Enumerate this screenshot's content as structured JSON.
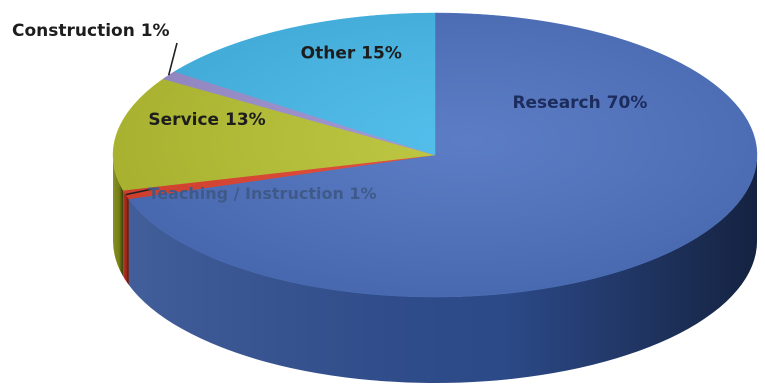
{
  "chart_data": {
    "type": "pie",
    "style": "3d",
    "categories": [
      "Research",
      "Teaching / Instruction",
      "Service",
      "Construction",
      "Other"
    ],
    "values": [
      70,
      1,
      13,
      1,
      15
    ],
    "labels": [
      "Research 70%",
      "Teaching / Instruction 1%",
      "Service 13%",
      "Construction 1%",
      "Other 15%"
    ],
    "colors": [
      "#4a6fbf",
      "#e2402c",
      "#b7c22f",
      "#9b8fd0",
      "#42b8ea"
    ],
    "side_colors": [
      "#2e4d8f",
      "#a62818",
      "#7e8716",
      "#6a60a0",
      "#2389b3"
    ],
    "label_colors": [
      "#1c2c5c",
      "#3f5a8a",
      "#1d1d1d",
      "#1d1d1d",
      "#1d1d1d"
    ]
  }
}
